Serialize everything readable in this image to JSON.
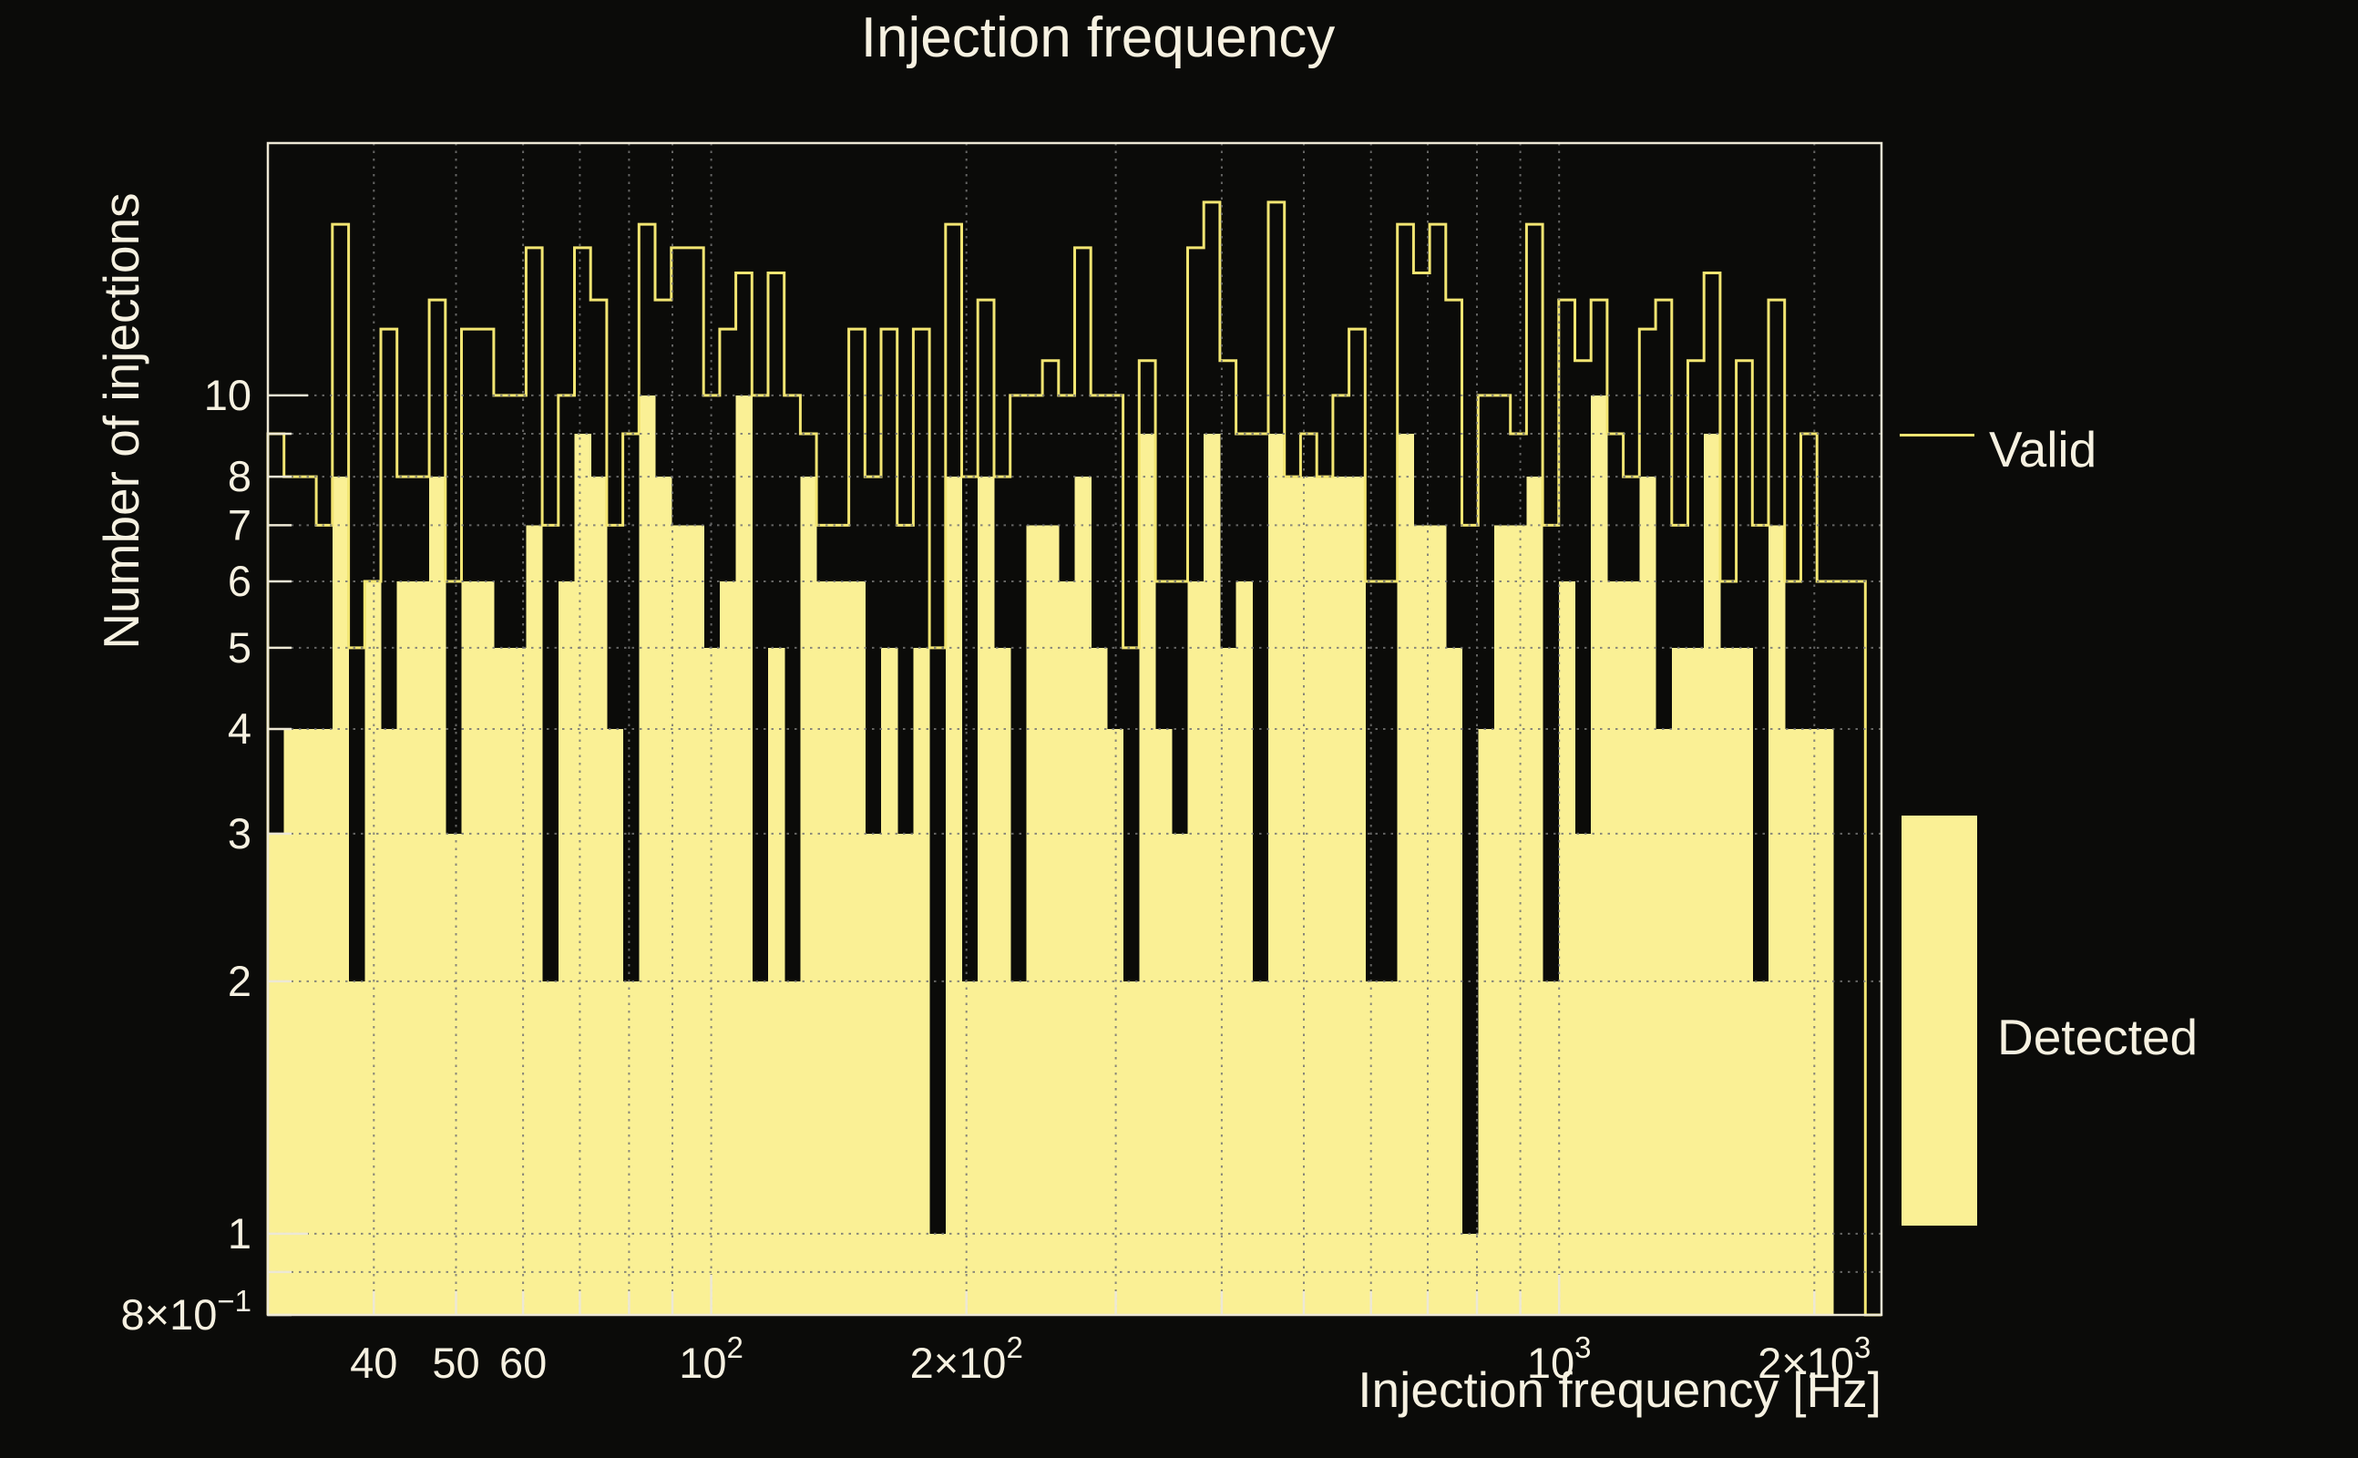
{
  "title": "Injection frequency",
  "x_axis": {
    "label": "Injection frequency [Hz]",
    "ticks": [
      {
        "f": 40,
        "label": "40",
        "exp": "",
        "major": false
      },
      {
        "f": 50,
        "label": "50",
        "exp": "",
        "major": false
      },
      {
        "f": 60,
        "label": "60",
        "exp": "",
        "major": false
      },
      {
        "f": 70,
        "label": "",
        "exp": "",
        "major": false
      },
      {
        "f": 80,
        "label": "",
        "exp": "",
        "major": false
      },
      {
        "f": 90,
        "label": "",
        "exp": "",
        "major": false
      },
      {
        "f": 100,
        "label": "10",
        "exp": "2",
        "major": true
      },
      {
        "f": 200,
        "label": "2×10",
        "exp": "2",
        "major": false
      },
      {
        "f": 300,
        "label": "",
        "exp": "",
        "major": false
      },
      {
        "f": 400,
        "label": "",
        "exp": "",
        "major": false
      },
      {
        "f": 500,
        "label": "",
        "exp": "",
        "major": false
      },
      {
        "f": 600,
        "label": "",
        "exp": "",
        "major": false
      },
      {
        "f": 700,
        "label": "",
        "exp": "",
        "major": false
      },
      {
        "f": 800,
        "label": "",
        "exp": "",
        "major": false
      },
      {
        "f": 900,
        "label": "",
        "exp": "",
        "major": false
      },
      {
        "f": 1000,
        "label": "10",
        "exp": "3",
        "major": true
      },
      {
        "f": 2000,
        "label": "2×10",
        "exp": "3",
        "major": false
      }
    ]
  },
  "y_axis": {
    "label": "Number of injections",
    "ticks": [
      {
        "v": 10,
        "label": "10",
        "exp": "",
        "major": true
      },
      {
        "v": 9,
        "label": "",
        "exp": "",
        "major": false
      },
      {
        "v": 8,
        "label": "8",
        "exp": "",
        "major": false
      },
      {
        "v": 7,
        "label": "7",
        "exp": "",
        "major": false
      },
      {
        "v": 6,
        "label": "6",
        "exp": "",
        "major": false
      },
      {
        "v": 5,
        "label": "5",
        "exp": "",
        "major": false
      },
      {
        "v": 4,
        "label": "4",
        "exp": "",
        "major": false
      },
      {
        "v": 3,
        "label": "3",
        "exp": "",
        "major": false
      },
      {
        "v": 2,
        "label": "2",
        "exp": "",
        "major": false
      },
      {
        "v": 1,
        "label": "1",
        "exp": "",
        "major": true
      },
      {
        "v": 0.9,
        "label": "",
        "exp": "",
        "major": false
      },
      {
        "v": 0.8,
        "label": "8×10",
        "exp": "−1",
        "major": false
      }
    ]
  },
  "legend": {
    "valid_label": "Valid",
    "detected_label": "Detected"
  },
  "colors": {
    "background": "#0B0B09",
    "detected_fill": "#FAF095",
    "valid_line": "#F2E572",
    "text": "#F6F1E1",
    "grid": "#757575",
    "frame": "#EDE8D5"
  },
  "chart_data": {
    "type": "step-histogram",
    "title": "Injection frequency",
    "xlabel": "Injection frequency [Hz]",
    "ylabel": "Number of injections",
    "x_scale": "log",
    "y_scale": "log",
    "x_range_hz": [
      30,
      2400
    ],
    "y_range": [
      0.8,
      20
    ],
    "n_bins": 100,
    "bin_spacing": "logarithmic",
    "grid": "dotted",
    "legend_position": "right-outside",
    "series": [
      {
        "name": "Valid",
        "style": "outline",
        "values": [
          9,
          8,
          8,
          7,
          16,
          5,
          6,
          12,
          8,
          8,
          13,
          6,
          12,
          12,
          10,
          10,
          15,
          7,
          10,
          15,
          13,
          7,
          9,
          16,
          13,
          15,
          15,
          10,
          12,
          14,
          10,
          14,
          10,
          9,
          7,
          7,
          12,
          8,
          12,
          7,
          12,
          5,
          16,
          8,
          13,
          8,
          10,
          10,
          11,
          10,
          15,
          10,
          10,
          5,
          11,
          6,
          6,
          15,
          17,
          11,
          9,
          9,
          17,
          8,
          9,
          8,
          10,
          12,
          6,
          6,
          16,
          14,
          16,
          13,
          7,
          10,
          10,
          9,
          16,
          7,
          13,
          11,
          13,
          9,
          8,
          12,
          13,
          7,
          11,
          14,
          6,
          11,
          7,
          13,
          6,
          9,
          6,
          6,
          6,
          0
        ]
      },
      {
        "name": "Detected",
        "style": "filled",
        "values": [
          3,
          4,
          4,
          4,
          8,
          2,
          6,
          4,
          6,
          6,
          8,
          3,
          6,
          6,
          5,
          5,
          7,
          2,
          6,
          9,
          8,
          4,
          2,
          10,
          8,
          7,
          7,
          5,
          6,
          10,
          2,
          5,
          2,
          8,
          6,
          6,
          6,
          3,
          5,
          3,
          5,
          1,
          8,
          2,
          8,
          5,
          2,
          7,
          7,
          6,
          8,
          5,
          4,
          2,
          9,
          4,
          3,
          6,
          9,
          5,
          6,
          2,
          9,
          8,
          8,
          8,
          8,
          8,
          2,
          2,
          9,
          7,
          7,
          5,
          1,
          4,
          7,
          7,
          8,
          2,
          6,
          3,
          10,
          6,
          6,
          8,
          4,
          5,
          5,
          9,
          5,
          5,
          2,
          7,
          4,
          4,
          4,
          0,
          0,
          0
        ]
      }
    ]
  }
}
